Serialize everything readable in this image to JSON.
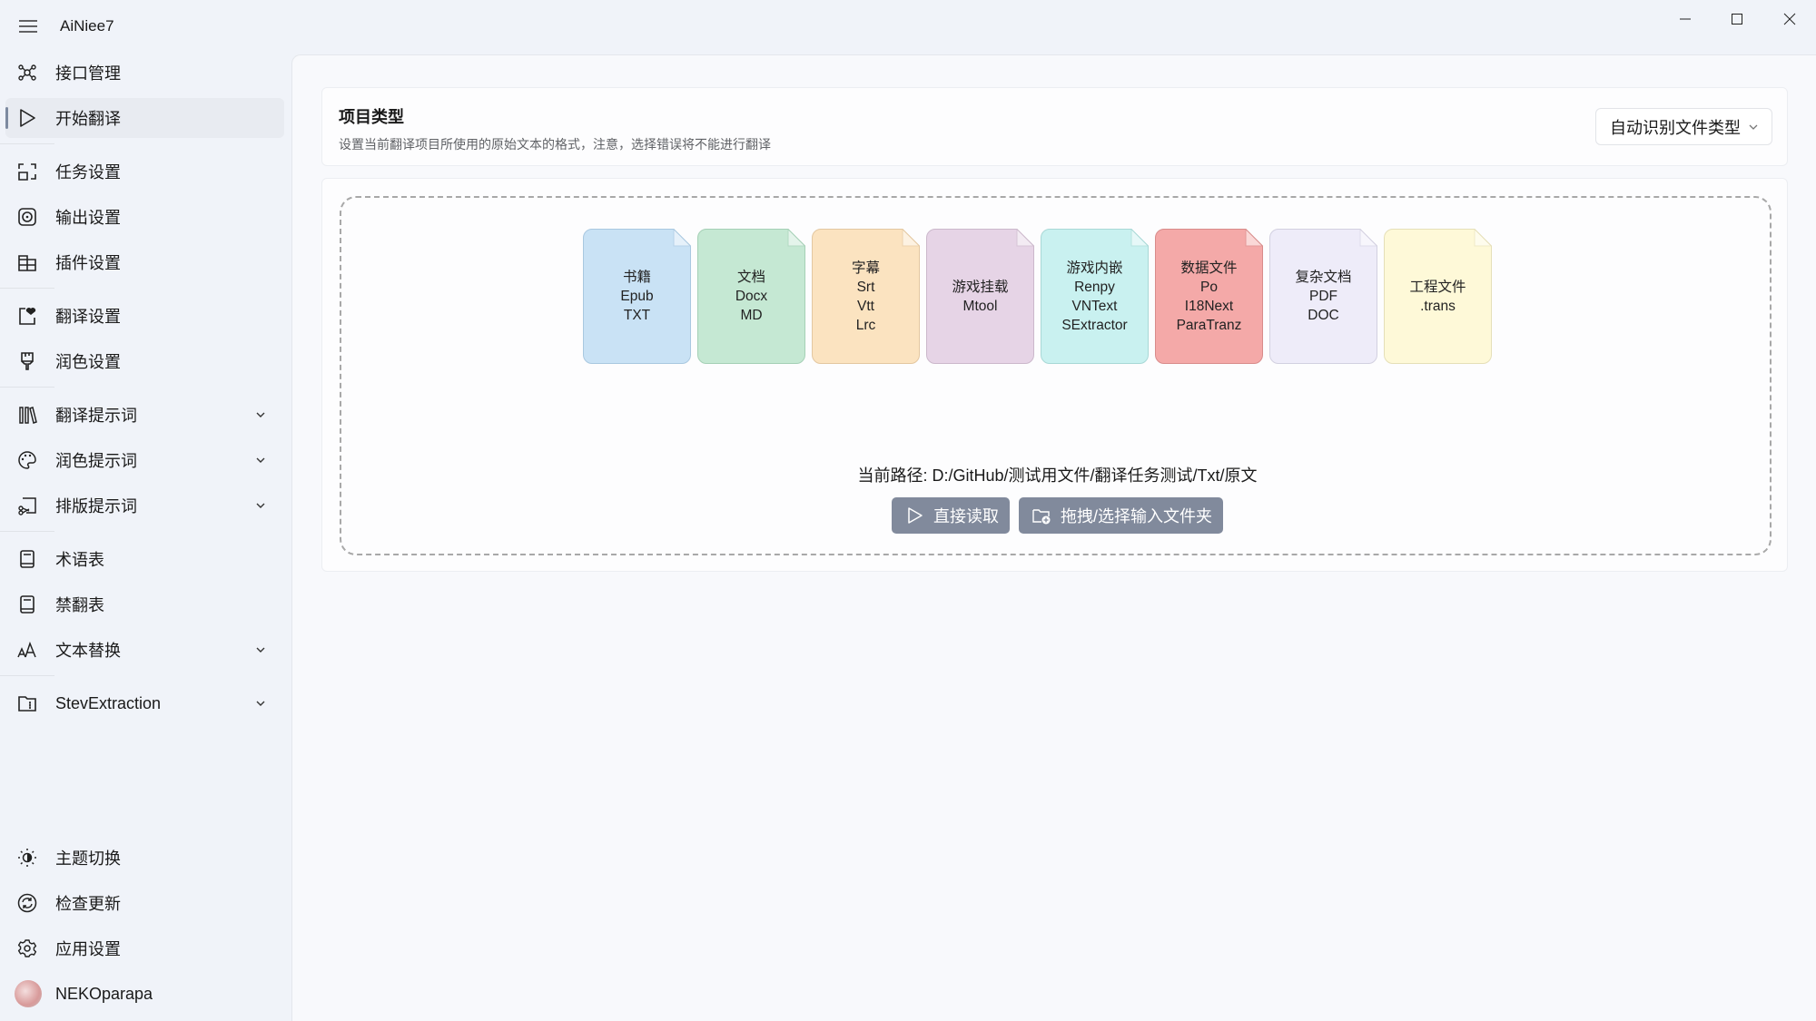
{
  "app": {
    "title": "AiNiee7"
  },
  "sidebar": {
    "groups": [
      [
        {
          "label": "接口管理",
          "icon": "network-icon"
        },
        {
          "label": "开始翻译",
          "icon": "play-icon",
          "selected": true
        }
      ],
      [
        {
          "label": "任务设置",
          "icon": "task-frame-icon"
        },
        {
          "label": "输出设置",
          "icon": "output-icon"
        },
        {
          "label": "插件设置",
          "icon": "plugin-icon"
        }
      ],
      [
        {
          "label": "翻译设置",
          "icon": "heart-note-icon"
        },
        {
          "label": "润色设置",
          "icon": "brush-icon"
        }
      ],
      [
        {
          "label": "翻译提示词",
          "icon": "library-icon",
          "expandable": true
        },
        {
          "label": "润色提示词",
          "icon": "palette-icon",
          "expandable": true
        },
        {
          "label": "排版提示词",
          "icon": "cut-icon",
          "expandable": true
        }
      ],
      [
        {
          "label": "术语表",
          "icon": "book-icon"
        },
        {
          "label": "禁翻表",
          "icon": "book-icon"
        },
        {
          "label": "文本替换",
          "icon": "font-size-icon",
          "expandable": true
        }
      ],
      [
        {
          "label": "StevExtraction",
          "icon": "folder-zip-icon",
          "expandable": true
        }
      ]
    ],
    "bottom": [
      {
        "label": "主题切换",
        "icon": "theme-icon"
      },
      {
        "label": "检查更新",
        "icon": "sync-icon"
      },
      {
        "label": "应用设置",
        "icon": "gear-icon"
      },
      {
        "label": "NEKOparapa",
        "icon": "avatar"
      }
    ]
  },
  "project_type": {
    "title": "项目类型",
    "subtitle": "设置当前翻译项目所使用的原始文本的格式，注意，选择错误将不能进行翻译",
    "selected": "自动识别文件类型"
  },
  "file_types": [
    {
      "lines": [
        "书籍",
        "Epub",
        "TXT"
      ],
      "color": "#c9e2f5",
      "border": "#a9c8e0"
    },
    {
      "lines": [
        "文档",
        "Docx",
        "MD"
      ],
      "color": "#c5e8d3",
      "border": "#a5d0b6"
    },
    {
      "lines": [
        "字幕",
        "Srt",
        "Vtt",
        "Lrc"
      ],
      "color": "#fbe3c0",
      "border": "#e3c7a0"
    },
    {
      "lines": [
        "游戏挂载",
        "Mtool"
      ],
      "color": "#e6d4e6",
      "border": "#cbb8cb"
    },
    {
      "lines": [
        "游戏内嵌",
        "Renpy",
        "VNText",
        "SExtractor"
      ],
      "color": "#c9f1f0",
      "border": "#a8d8d6"
    },
    {
      "lines": [
        "数据文件",
        "Po",
        "I18Next",
        "ParaTranz"
      ],
      "color": "#f4a9a8",
      "border": "#d88c8b"
    },
    {
      "lines": [
        "复杂文档",
        "PDF",
        "DOC"
      ],
      "color": "#eeecf9",
      "border": "#d2d0e0"
    },
    {
      "lines": [
        "工程文件",
        ".trans"
      ],
      "color": "#fef9d8",
      "border": "#e5dfb8"
    }
  ],
  "path": {
    "text": "当前路径: D:/GitHub/测试用文件/翻译任务测试/Txt/原文"
  },
  "buttons": {
    "read": "直接读取",
    "select": "拖拽/选择输入文件夹"
  }
}
